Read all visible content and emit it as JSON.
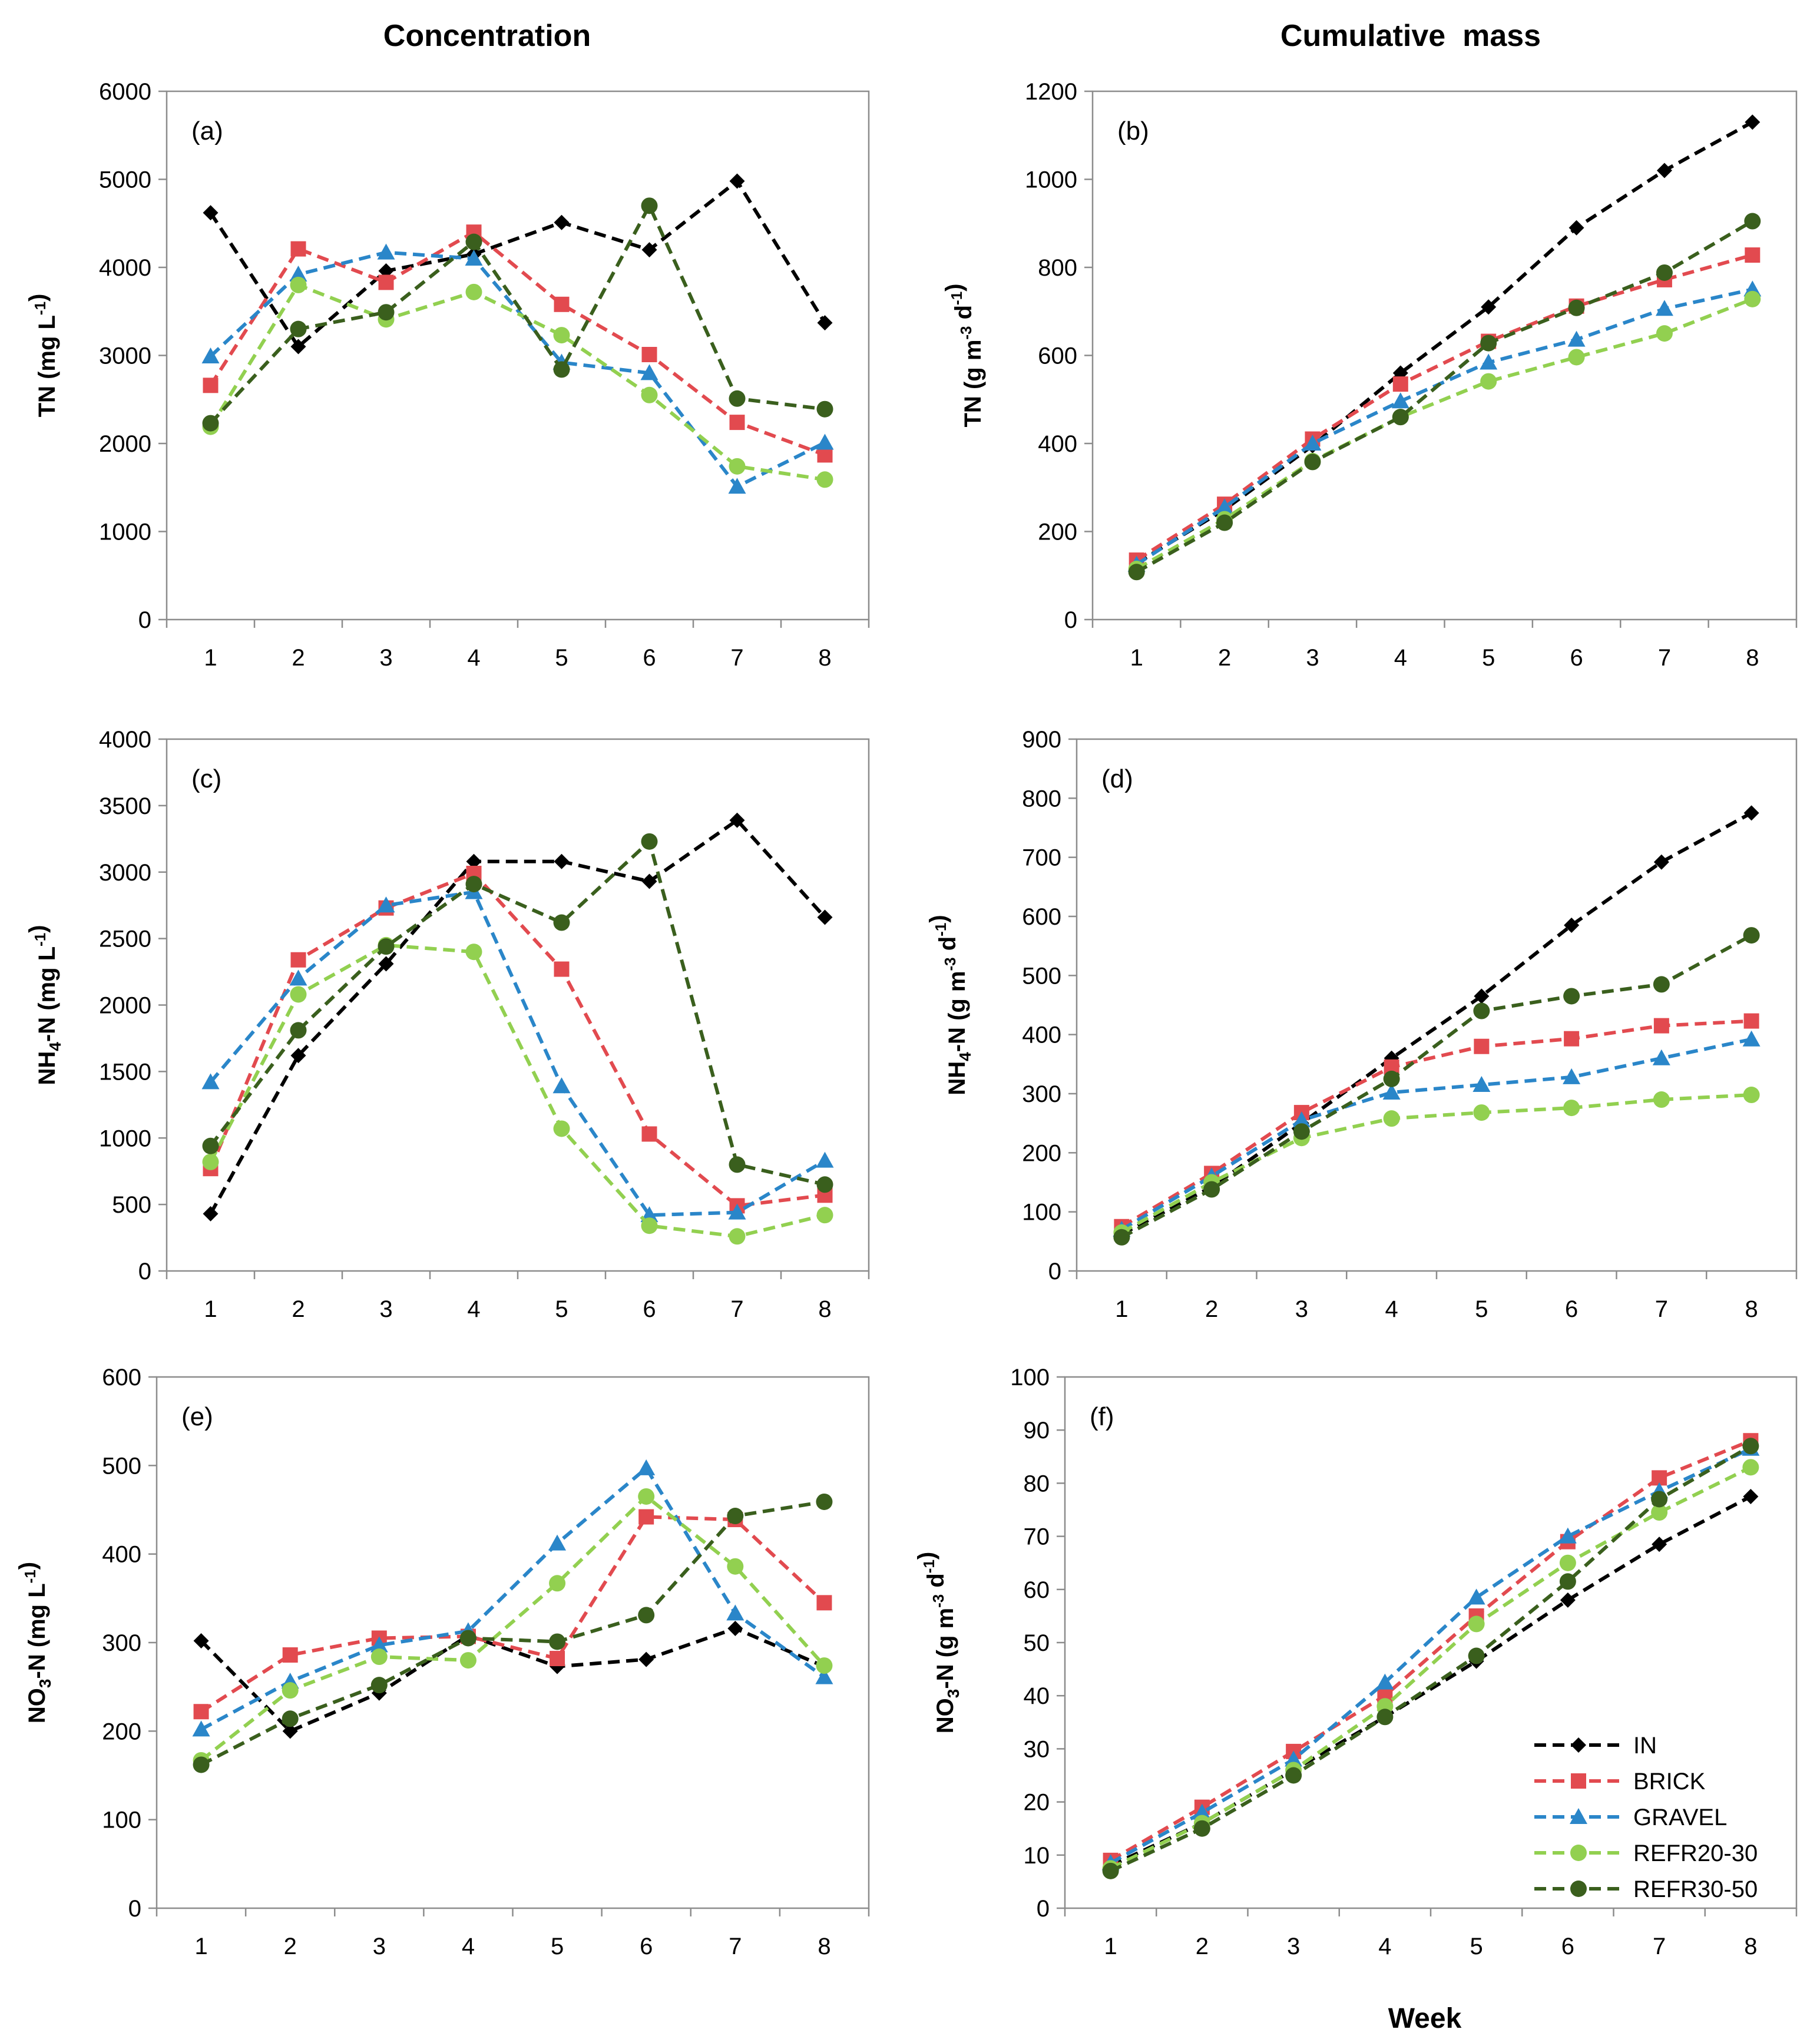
{
  "column_titles": {
    "left": "Concentration",
    "right": "Cumulative  mass"
  },
  "x_label": "Week",
  "series_styles": {
    "IN": {
      "color": "#000000",
      "marker": "diamond"
    },
    "BRICK": {
      "color": "#e24a4f",
      "marker": "square"
    },
    "GRAVEL": {
      "color": "#2a86c9",
      "marker": "triangle"
    },
    "REFR20-30": {
      "color": "#92d050",
      "marker": "circle"
    },
    "REFR30-50": {
      "color": "#3a5f1d",
      "marker": "circle"
    }
  },
  "legend": [
    "IN",
    "BRICK",
    "GRAVEL",
    "REFR20-30",
    "REFR30-50"
  ],
  "chart_data": [
    {
      "panel": "(a)",
      "type": "line",
      "column": "Concentration",
      "ylabel": "TN",
      "yunit": "mg L-1",
      "ylim": [
        0,
        6000
      ],
      "ystep": 1000,
      "x": [
        1,
        2,
        3,
        4,
        5,
        6,
        7,
        8
      ],
      "series": [
        {
          "name": "IN",
          "values": [
            4620,
            3100,
            3960,
            4150,
            4510,
            4200,
            4980,
            3370
          ]
        },
        {
          "name": "BRICK",
          "values": [
            2660,
            4210,
            3830,
            4400,
            3580,
            3010,
            2240,
            1870
          ]
        },
        {
          "name": "GRAVEL",
          "values": [
            2990,
            3920,
            4170,
            4100,
            2920,
            2800,
            1510,
            2010
          ]
        },
        {
          "name": "REFR20-30",
          "values": [
            2190,
            3800,
            3410,
            3720,
            3230,
            2550,
            1740,
            1590
          ]
        },
        {
          "name": "REFR30-50",
          "values": [
            2230,
            3300,
            3490,
            4290,
            2840,
            4700,
            2510,
            2390
          ]
        }
      ]
    },
    {
      "panel": "(b)",
      "type": "line",
      "column": "Cumulative  mass",
      "ylabel": "TN",
      "yunit": "g m-3 d-1",
      "ylim": [
        0,
        1200
      ],
      "ystep": 200,
      "x": [
        1,
        2,
        3,
        4,
        5,
        6,
        7,
        8
      ],
      "series": [
        {
          "name": "IN",
          "values": [
            128,
            250,
            395,
            560,
            710,
            890,
            1020,
            1130
          ]
        },
        {
          "name": "BRICK",
          "values": [
            135,
            262,
            410,
            535,
            632,
            712,
            772,
            828
          ]
        },
        {
          "name": "GRAVEL",
          "values": [
            125,
            255,
            400,
            496,
            584,
            636,
            706,
            750
          ]
        },
        {
          "name": "REFR20-30",
          "values": [
            115,
            228,
            360,
            460,
            541,
            596,
            650,
            728
          ]
        },
        {
          "name": "REFR30-50",
          "values": [
            108,
            220,
            358,
            460,
            628,
            708,
            788,
            905
          ]
        }
      ]
    },
    {
      "panel": "(c)",
      "type": "line",
      "column": "Concentration",
      "ylabel": "NH4-N",
      "yunit": "mg L-1",
      "ylim": [
        0,
        4000
      ],
      "ystep": 500,
      "x": [
        1,
        2,
        3,
        4,
        5,
        6,
        7,
        8
      ],
      "series": [
        {
          "name": "IN",
          "values": [
            430,
            1620,
            2310,
            3080,
            3080,
            2930,
            3390,
            2660
          ]
        },
        {
          "name": "BRICK",
          "values": [
            770,
            2340,
            2730,
            2990,
            2270,
            1030,
            490,
            570
          ]
        },
        {
          "name": "GRAVEL",
          "values": [
            1420,
            2200,
            2750,
            2850,
            1390,
            420,
            440,
            830
          ]
        },
        {
          "name": "REFR20-30",
          "values": [
            820,
            2080,
            2450,
            2400,
            1070,
            340,
            260,
            420
          ]
        },
        {
          "name": "REFR30-50",
          "values": [
            940,
            1810,
            2440,
            2910,
            2620,
            3230,
            800,
            650
          ]
        }
      ]
    },
    {
      "panel": "(d)",
      "type": "line",
      "column": "Cumulative  mass",
      "ylabel": "NH4-N",
      "yunit": "g m-3 d-1",
      "ylim": [
        0,
        900
      ],
      "ystep": 100,
      "x": [
        1,
        2,
        3,
        4,
        5,
        6,
        7,
        8
      ],
      "series": [
        {
          "name": "IN",
          "values": [
            62,
            142,
            250,
            360,
            465,
            585,
            692,
            775
          ]
        },
        {
          "name": "BRICK",
          "values": [
            75,
            165,
            268,
            345,
            380,
            393,
            415,
            423
          ]
        },
        {
          "name": "GRAVEL",
          "values": [
            70,
            160,
            255,
            302,
            315,
            328,
            360,
            392
          ]
        },
        {
          "name": "REFR20-30",
          "values": [
            65,
            150,
            225,
            258,
            268,
            276,
            290,
            298
          ]
        },
        {
          "name": "REFR30-50",
          "values": [
            57,
            138,
            236,
            325,
            440,
            465,
            485,
            568
          ]
        }
      ]
    },
    {
      "panel": "(e)",
      "type": "line",
      "column": "Concentration",
      "ylabel": "NO3-N",
      "yunit": "mg L-1",
      "ylim": [
        0,
        600
      ],
      "ystep": 100,
      "x": [
        1,
        2,
        3,
        4,
        5,
        6,
        7,
        8
      ],
      "series": [
        {
          "name": "IN",
          "values": [
            302,
            200,
            243,
            308,
            273,
            281,
            316,
            273
          ]
        },
        {
          "name": "BRICK",
          "values": [
            222,
            286,
            305,
            307,
            282,
            442,
            439,
            345
          ]
        },
        {
          "name": "GRAVEL",
          "values": [
            202,
            256,
            297,
            313,
            412,
            497,
            333,
            261
          ]
        },
        {
          "name": "REFR20-30",
          "values": [
            167,
            246,
            284,
            280,
            367,
            465,
            386,
            274
          ]
        },
        {
          "name": "REFR30-50",
          "values": [
            162,
            214,
            252,
            305,
            301,
            331,
            443,
            459
          ]
        }
      ]
    },
    {
      "panel": "(f)",
      "type": "line",
      "column": "Cumulative  mass",
      "ylabel": "NO3-N",
      "yunit": "g m-3 d-1",
      "ylim": [
        0,
        100
      ],
      "ystep": 10,
      "x": [
        1,
        2,
        3,
        4,
        5,
        6,
        7,
        8
      ],
      "series": [
        {
          "name": "IN",
          "values": [
            8,
            16,
            26,
            36,
            46.5,
            58,
            68.5,
            77.5
          ]
        },
        {
          "name": "BRICK",
          "values": [
            9,
            19,
            29.5,
            40,
            55,
            69,
            81,
            88
          ]
        },
        {
          "name": "GRAVEL",
          "values": [
            8.5,
            18,
            28,
            42.5,
            58.5,
            70,
            78.5,
            86.5
          ]
        },
        {
          "name": "REFR20-30",
          "values": [
            7.5,
            16,
            26,
            38,
            53.5,
            65,
            74.5,
            83
          ]
        },
        {
          "name": "REFR30-50",
          "values": [
            7,
            15,
            25,
            36,
            47.5,
            61.5,
            77,
            87
          ]
        }
      ]
    }
  ]
}
